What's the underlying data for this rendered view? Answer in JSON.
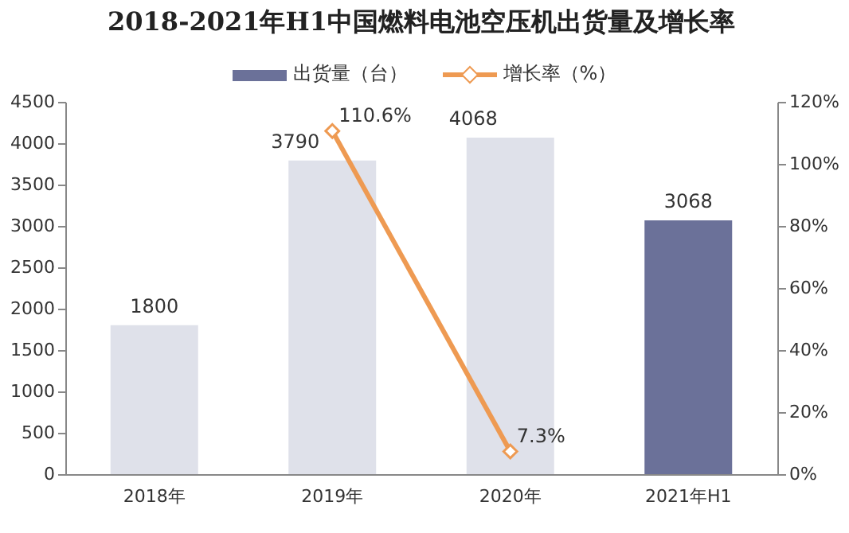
{
  "chart_data": {
    "type": "bar",
    "title": "2018-2021年H1中国燃料电池空压机出货量及增长率",
    "categories": [
      "2018年",
      "2019年",
      "2020年",
      "2021年H1"
    ],
    "series": [
      {
        "name": "出货量（台）",
        "color": "#6b7199",
        "colors": [
          "#dfe1ea",
          "#dfe1ea",
          "#dfe1ea",
          "#6b7199"
        ],
        "values": [
          1800,
          3790,
          4068,
          3068
        ]
      },
      {
        "name": "增长率（%）",
        "type": "line",
        "axis": "y2",
        "color": "#ee9a52",
        "values": [
          null,
          110.6,
          7.3,
          null
        ],
        "value_labels": [
          null,
          "110.6%",
          "7.3%",
          null
        ]
      }
    ],
    "ylim": [
      0,
      4500
    ],
    "yticks": [
      0,
      500,
      1000,
      1500,
      2000,
      2500,
      3000,
      3500,
      4000,
      4500
    ],
    "y2lim": [
      0,
      120
    ],
    "y2ticks": [
      {
        "value": 0,
        "label": "0%"
      },
      {
        "value": 20,
        "label": "20%"
      },
      {
        "value": 40,
        "label": "40%"
      },
      {
        "value": 60,
        "label": "60%"
      },
      {
        "value": 80,
        "label": "80%"
      },
      {
        "value": 100,
        "label": "100%"
      },
      {
        "value": 120,
        "label": "120%"
      }
    ],
    "data_labels": true,
    "marker": "diamond",
    "legend": "top",
    "line_style": "solid"
  }
}
